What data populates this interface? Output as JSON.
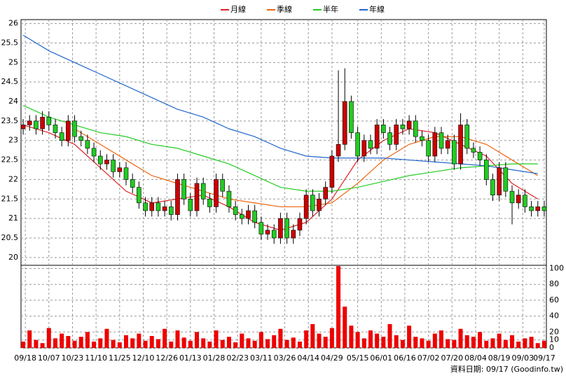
{
  "chart_data": {
    "type": "candlestick",
    "x": [
      0,
      3,
      6,
      9,
      12,
      15,
      18,
      21,
      24,
      27,
      30,
      33,
      36,
      39,
      42,
      45,
      48,
      51,
      54,
      57,
      60,
      63,
      66,
      69,
      72,
      75,
      78,
      81,
      84,
      87,
      90,
      93,
      96,
      99,
      102,
      105,
      108,
      111,
      114,
      117,
      120,
      123,
      126,
      129,
      132,
      135,
      138,
      141,
      144,
      147,
      150,
      153,
      156,
      159,
      162,
      165,
      168,
      171,
      174,
      177,
      180,
      183,
      186,
      189,
      192,
      195,
      198,
      201,
      204,
      207,
      210,
      213,
      216,
      219,
      222,
      225,
      228,
      231,
      234,
      237,
      240,
      243
    ],
    "open": [
      23.3,
      23.4,
      23.5,
      23.3,
      23.6,
      23.4,
      23.2,
      23.0,
      23.5,
      23.1,
      23.0,
      22.8,
      22.6,
      22.4,
      22.5,
      22.2,
      22.3,
      22.0,
      21.8,
      21.4,
      21.2,
      21.4,
      21.2,
      21.3,
      21.1,
      22.0,
      21.5,
      21.2,
      21.9,
      21.5,
      21.3,
      22.0,
      21.7,
      21.3,
      21.1,
      21.0,
      21.2,
      20.9,
      20.6,
      20.7,
      20.5,
      21.0,
      20.5,
      20.7,
      21.0,
      21.6,
      21.2,
      21.5,
      21.8,
      22.6,
      22.9,
      24.0,
      23.2,
      22.6,
      23.0,
      22.8,
      23.4,
      23.2,
      22.9,
      23.4,
      23.3,
      23.5,
      23.1,
      23.0,
      22.6,
      23.2,
      22.8,
      23.0,
      22.4,
      23.4,
      22.8,
      22.7,
      22.5,
      22.0,
      21.6,
      22.3,
      21.7,
      21.4,
      21.6,
      21.3,
      21.2,
      21.3
    ],
    "high": [
      23.55,
      23.65,
      23.65,
      23.75,
      23.75,
      23.55,
      23.35,
      23.65,
      23.65,
      23.25,
      23.15,
      22.95,
      22.75,
      22.65,
      22.65,
      22.45,
      22.45,
      22.15,
      21.95,
      21.55,
      21.55,
      21.55,
      21.45,
      21.45,
      22.15,
      22.15,
      21.65,
      22.05,
      22.05,
      21.65,
      22.15,
      22.15,
      21.85,
      21.45,
      21.25,
      21.35,
      21.35,
      21.05,
      20.85,
      20.85,
      21.15,
      21.15,
      20.85,
      21.15,
      21.75,
      21.75,
      21.65,
      21.95,
      22.75,
      24.8,
      24.85,
      24.15,
      23.35,
      23.15,
      23.15,
      23.55,
      23.55,
      23.35,
      23.55,
      23.55,
      23.65,
      23.65,
      23.25,
      23.15,
      23.35,
      23.35,
      23.15,
      23.15,
      23.7,
      23.55,
      22.95,
      22.85,
      22.65,
      22.15,
      22.45,
      22.45,
      21.85,
      21.75,
      21.75,
      21.45,
      21.45,
      21.45
    ],
    "low": [
      23.15,
      23.25,
      23.15,
      23.15,
      23.25,
      23.05,
      22.85,
      22.85,
      22.95,
      22.85,
      22.65,
      22.45,
      22.25,
      22.25,
      22.05,
      22.05,
      21.85,
      21.65,
      21.25,
      21.05,
      21.05,
      21.05,
      21.05,
      20.95,
      20.95,
      21.35,
      21.05,
      21.05,
      21.35,
      21.15,
      21.15,
      21.55,
      21.15,
      20.95,
      20.85,
      20.85,
      20.75,
      20.45,
      20.45,
      20.35,
      20.35,
      20.35,
      20.35,
      20.55,
      20.85,
      21.05,
      21.05,
      21.35,
      21.65,
      22.45,
      22.75,
      23.05,
      22.45,
      22.45,
      22.65,
      22.65,
      23.05,
      22.75,
      22.75,
      23.15,
      23.15,
      22.95,
      22.85,
      22.45,
      22.45,
      22.65,
      22.65,
      22.25,
      22.25,
      22.65,
      22.55,
      22.35,
      21.85,
      21.45,
      21.45,
      21.55,
      20.85,
      21.25,
      21.15,
      21.05,
      21.05,
      21.05
    ],
    "close": [
      23.4,
      23.5,
      23.3,
      23.6,
      23.4,
      23.2,
      23.0,
      23.5,
      23.1,
      23.0,
      22.8,
      22.6,
      22.4,
      22.5,
      22.2,
      22.3,
      22.0,
      21.8,
      21.4,
      21.2,
      21.4,
      21.2,
      21.3,
      21.1,
      22.0,
      21.5,
      21.2,
      21.9,
      21.5,
      21.3,
      22.0,
      21.7,
      21.3,
      21.1,
      21.0,
      21.2,
      20.9,
      20.6,
      20.7,
      20.5,
      21.0,
      20.5,
      20.7,
      21.0,
      21.6,
      21.2,
      21.5,
      21.8,
      22.6,
      22.9,
      24.0,
      23.2,
      22.6,
      23.0,
      22.8,
      23.4,
      23.2,
      22.9,
      23.4,
      23.3,
      23.5,
      23.1,
      23.0,
      22.6,
      23.2,
      22.8,
      23.0,
      22.4,
      23.4,
      22.8,
      22.7,
      22.5,
      22.0,
      21.6,
      22.3,
      21.7,
      21.4,
      21.6,
      21.3,
      21.2,
      21.3,
      21.2
    ],
    "up_color": "#cc0000",
    "down_color": "#22cc22",
    "xlim": [
      -1,
      244
    ],
    "xticks": [
      {
        "value": 1,
        "label": "09/18"
      },
      {
        "value": 12,
        "label": "10/07"
      },
      {
        "value": 23,
        "label": "10/23"
      },
      {
        "value": 34,
        "label": "11/10"
      },
      {
        "value": 45,
        "label": "11/25"
      },
      {
        "value": 56,
        "label": "12/10"
      },
      {
        "value": 67,
        "label": "12/26"
      },
      {
        "value": 78,
        "label": "01/13"
      },
      {
        "value": 89,
        "label": "01/28"
      },
      {
        "value": 100,
        "label": "02/23"
      },
      {
        "value": 111,
        "label": "03/11"
      },
      {
        "value": 122,
        "label": "03/26"
      },
      {
        "value": 133,
        "label": "04/14"
      },
      {
        "value": 144,
        "label": "04/29"
      },
      {
        "value": 156,
        "label": "05/15"
      },
      {
        "value": 167,
        "label": "06/01"
      },
      {
        "value": 178,
        "label": "06/16"
      },
      {
        "value": 189,
        "label": "07/02"
      },
      {
        "value": 200,
        "label": "07/20"
      },
      {
        "value": 211,
        "label": "08/04"
      },
      {
        "value": 222,
        "label": "08/19"
      },
      {
        "value": 233,
        "label": "09/03"
      },
      {
        "value": 243,
        "label": "09/17"
      }
    ],
    "ylim": [
      19.8,
      26.1
    ],
    "yticks": [
      20,
      20.5,
      21,
      21.5,
      22,
      22.5,
      23,
      23.5,
      24,
      24.5,
      25,
      25.5,
      26
    ],
    "grid": true,
    "lines": {
      "x": [
        0,
        12,
        24,
        36,
        48,
        60,
        72,
        84,
        96,
        108,
        120,
        132,
        144,
        156,
        168,
        180,
        192,
        204,
        216,
        228,
        240
      ],
      "series": [
        {
          "name": "月線",
          "color": "#dd2222",
          "values": [
            23.4,
            23.2,
            22.9,
            22.3,
            21.7,
            21.4,
            21.5,
            21.6,
            21.3,
            20.9,
            20.7,
            20.9,
            21.5,
            22.5,
            23.0,
            23.3,
            23.2,
            22.9,
            22.6,
            21.9,
            21.5
          ]
        },
        {
          "name": "季線",
          "color": "#ee6611",
          "values": [
            null,
            null,
            23.3,
            22.9,
            22.5,
            22.1,
            21.9,
            21.7,
            21.5,
            21.4,
            21.3,
            21.3,
            21.4,
            21.9,
            22.5,
            22.9,
            23.1,
            23.1,
            22.9,
            22.5,
            22.1
          ]
        },
        {
          "name": "半年",
          "color": "#22cc22",
          "values": [
            23.9,
            23.6,
            23.4,
            23.2,
            23.1,
            22.9,
            22.8,
            22.6,
            22.4,
            22.1,
            21.8,
            21.7,
            21.7,
            21.8,
            21.95,
            22.1,
            22.2,
            22.3,
            22.35,
            22.4,
            22.4
          ]
        },
        {
          "name": "年線",
          "color": "#2266cc",
          "values": [
            25.7,
            25.3,
            25.0,
            24.7,
            24.4,
            24.1,
            23.8,
            23.6,
            23.3,
            23.1,
            22.8,
            22.6,
            22.55,
            22.55,
            22.55,
            22.5,
            22.45,
            22.4,
            22.35,
            22.25,
            22.15
          ]
        }
      ]
    },
    "volume": {
      "color": "#ee0000",
      "values": [
        8,
        22,
        10,
        6,
        25,
        12,
        18,
        15,
        9,
        14,
        20,
        8,
        12,
        24,
        10,
        7,
        16,
        12,
        18,
        9,
        15,
        11,
        24,
        8,
        22,
        13,
        9,
        20,
        12,
        8,
        22,
        10,
        14,
        7,
        18,
        12,
        9,
        20,
        11,
        16,
        24,
        10,
        13,
        8,
        22,
        30,
        18,
        14,
        25,
        103,
        52,
        28,
        20,
        12,
        22,
        18,
        14,
        30,
        16,
        10,
        28,
        14,
        12,
        9,
        18,
        22,
        11,
        10,
        24,
        16,
        14,
        20,
        9,
        12,
        18,
        10,
        16,
        8,
        12,
        14,
        6,
        9
      ],
      "ylim": [
        0,
        104
      ],
      "yticks": [
        0,
        10,
        20,
        40,
        60,
        80,
        100
      ]
    }
  },
  "footer": "資料日期: 09/17 (Goodinfo.tw)"
}
